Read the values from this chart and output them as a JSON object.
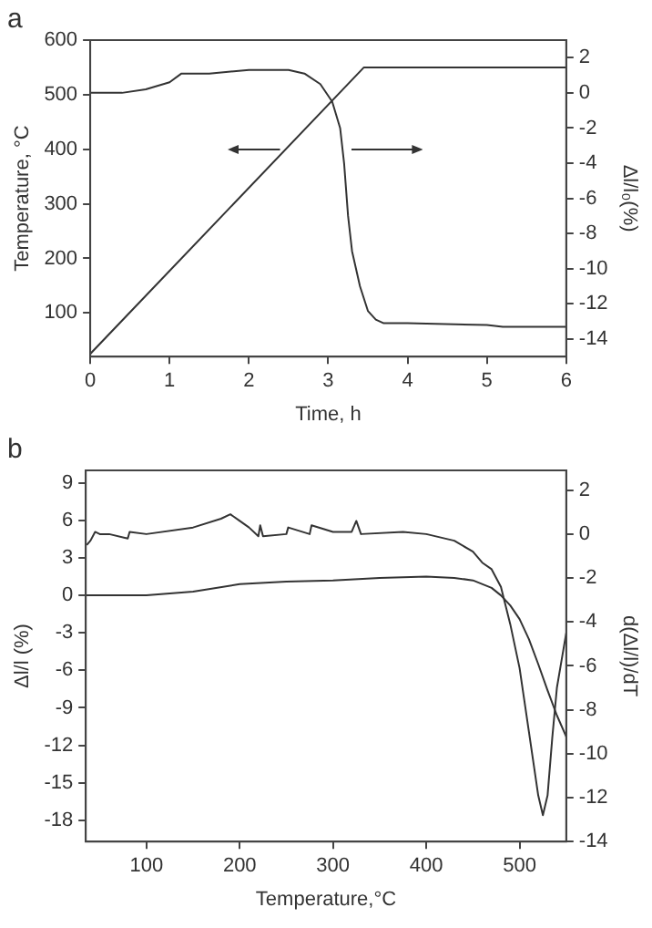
{
  "chart_data": [
    {
      "type": "line",
      "title": "a",
      "xlabel": "Time, h",
      "ylabel": "Temperature, °C",
      "y2label": "Δl/l₀(%)",
      "xlim": [
        0,
        6
      ],
      "xticks": [
        0,
        1,
        2,
        3,
        4,
        5,
        6
      ],
      "ylim": [
        20,
        600
      ],
      "yticks": [
        100,
        200,
        300,
        400,
        500,
        600
      ],
      "y2lim": [
        -15,
        3
      ],
      "y2ticks": [
        2,
        0,
        -2,
        -4,
        -6,
        -8,
        -10,
        -12,
        -14
      ],
      "grid": false,
      "legend": false,
      "marker": "none",
      "series": [
        {
          "color": "#333333",
          "x": [
            0,
            3.45,
            6
          ],
          "values": [
            25,
            550,
            550
          ]
        },
        {
          "color": "#333333",
          "axis": "y2",
          "x": [
            0,
            0.4,
            0.7,
            1.0,
            1.15,
            1.5,
            2.0,
            2.5,
            2.7,
            2.9,
            3.05,
            3.15,
            3.2,
            3.25,
            3.3,
            3.4,
            3.5,
            3.6,
            3.7,
            4.0,
            5.0,
            5.2,
            6.0
          ],
          "values": [
            0,
            0,
            0.2,
            0.6,
            1.1,
            1.1,
            1.3,
            1.3,
            1.1,
            0.5,
            -0.5,
            -2,
            -4,
            -7,
            -9,
            -11,
            -12.4,
            -12.9,
            -13.1,
            -13.1,
            -13.2,
            -13.3,
            -13.3
          ]
        }
      ]
    },
    {
      "type": "line",
      "title": "b",
      "xlabel": "Temperature,°C",
      "ylabel": "Δl/l (%)",
      "y2label": "d(Δl/l)/dT",
      "xlim": [
        35,
        550
      ],
      "xticks": [
        100,
        200,
        300,
        400,
        500
      ],
      "ylim": [
        -19.7,
        10
      ],
      "yticks": [
        9,
        6,
        3,
        0,
        -3,
        -6,
        -9,
        -12,
        -15,
        -18
      ],
      "y2lim": [
        -14,
        2.9
      ],
      "y2ticks": [
        2,
        0,
        -2,
        -4,
        -6,
        -8,
        -10,
        -12,
        -14
      ],
      "grid": false,
      "legend": false,
      "marker": "none",
      "series": [
        {
          "color": "#333333",
          "x": [
            35,
            100,
            150,
            200,
            250,
            300,
            350,
            400,
            430,
            450,
            470,
            480,
            490,
            500,
            510,
            520,
            530,
            540,
            550
          ],
          "values": [
            0,
            0,
            0.3,
            0.9,
            1.1,
            1.2,
            1.4,
            1.5,
            1.4,
            1.2,
            0.6,
            0,
            -0.8,
            -1.9,
            -3.5,
            -5.5,
            -7.6,
            -9.6,
            -11.3
          ]
        },
        {
          "color": "#333333",
          "axis": "y2",
          "x": [
            36,
            40,
            45,
            50,
            60,
            80,
            82,
            100,
            150,
            180,
            190,
            200,
            210,
            220,
            222,
            225,
            250,
            252,
            275,
            277,
            300,
            320,
            325,
            330,
            375,
            400,
            430,
            450,
            460,
            470,
            480,
            490,
            500,
            510,
            520,
            525,
            530,
            535,
            540,
            550
          ],
          "values": [
            -0.5,
            -0.3,
            0.1,
            0,
            0,
            -0.2,
            0.1,
            0,
            0.3,
            0.7,
            0.9,
            0.6,
            0.3,
            -0.1,
            0.4,
            -0.1,
            0,
            0.3,
            0,
            0.4,
            0.1,
            0.1,
            0.6,
            0,
            0.1,
            0,
            -0.3,
            -0.8,
            -1.3,
            -1.6,
            -2.4,
            -4.1,
            -6.1,
            -9,
            -11.9,
            -12.8,
            -11.9,
            -9.3,
            -7,
            -4.5
          ]
        }
      ]
    }
  ]
}
